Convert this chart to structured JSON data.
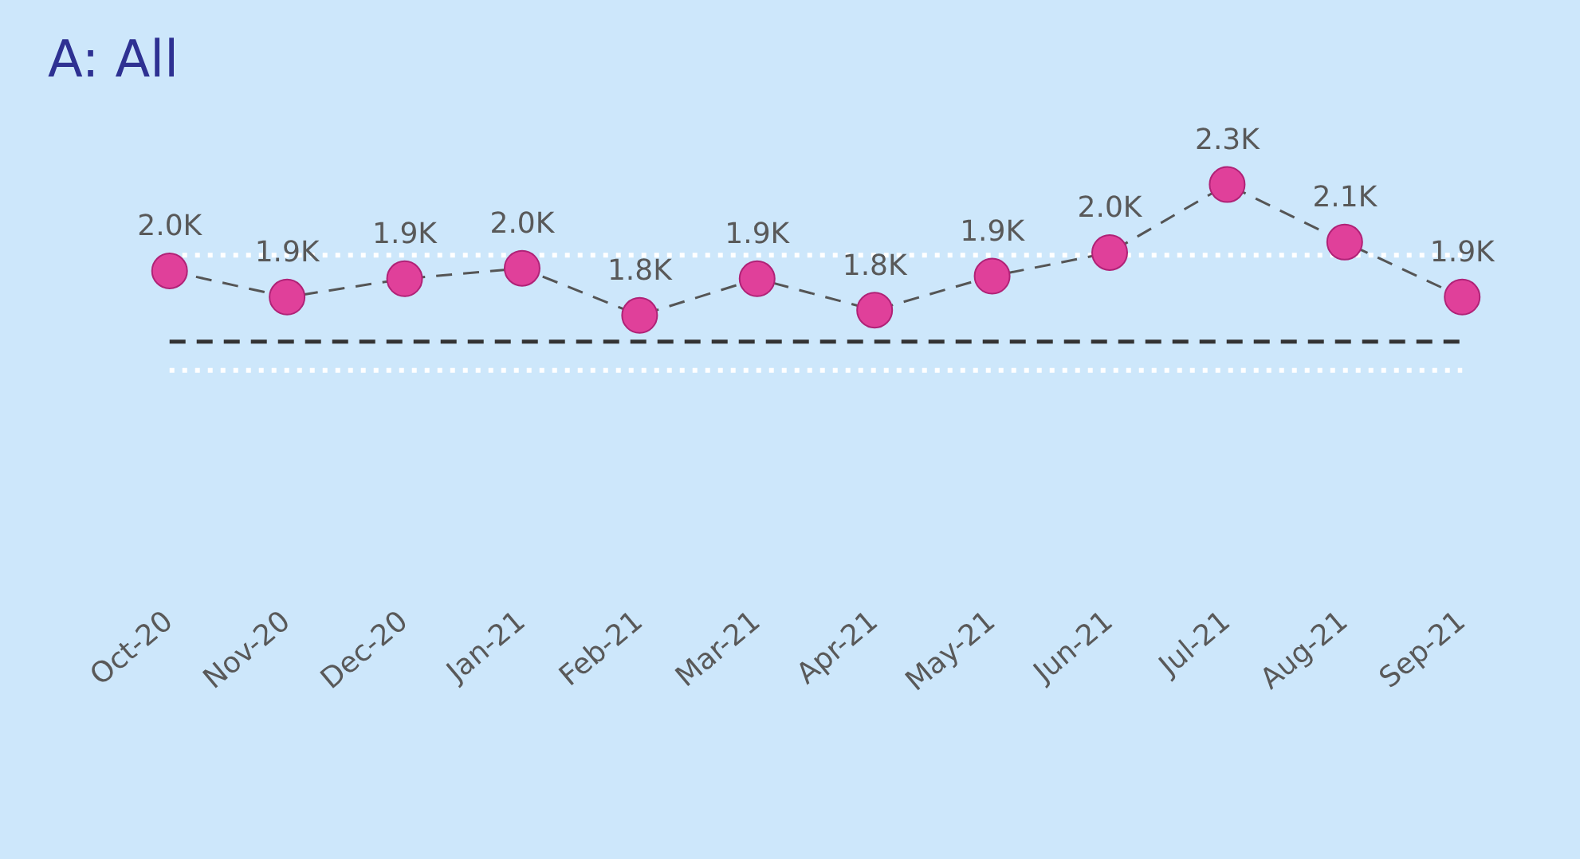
{
  "chart_data": {
    "type": "line",
    "title": "A: All",
    "categories": [
      "Oct-20",
      "Nov-20",
      "Dec-20",
      "Jan-21",
      "Feb-21",
      "Mar-21",
      "Apr-21",
      "May-21",
      "Jun-21",
      "Jul-21",
      "Aug-21",
      "Sep-21"
    ],
    "series": [
      {
        "color": "#e0409a",
        "values": [
          1970,
          1870,
          1940,
          1980,
          1800,
          1940,
          1820,
          1950,
          2040,
          2300,
          2080,
          1870
        ],
        "value_labels": [
          "2.0K",
          "1.9K",
          "1.9K",
          "2.0K",
          "1.8K",
          "1.9K",
          "1.8K",
          "1.9K",
          "2.0K",
          "2.3K",
          "2.1K",
          "1.9K"
        ]
      }
    ],
    "tick_labels": "x",
    "grid": false,
    "legend": false,
    "marker": "circle",
    "line_style": "dashed",
    "ref_lines": [
      {
        "axis": "y",
        "value": 1700,
        "color": "#333333",
        "line_style": "dashed"
      },
      {
        "axis": "y",
        "value": 2030,
        "color": "#ffffff",
        "line_style": "dotted"
      },
      {
        "axis": "y",
        "value": 1590,
        "color": "#ffffff",
        "line_style": "dotted"
      }
    ]
  }
}
